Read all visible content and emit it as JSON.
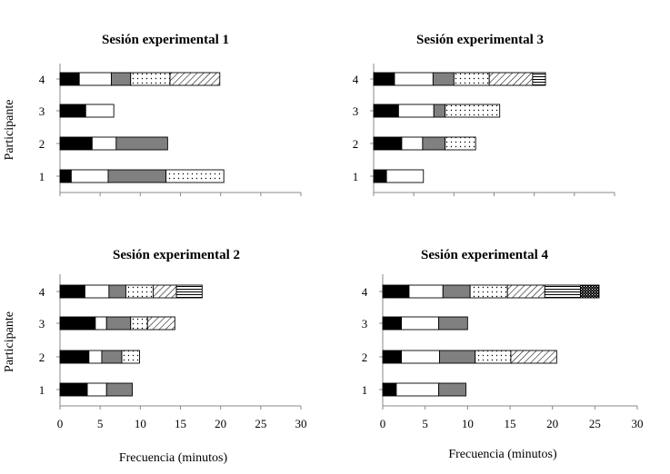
{
  "chart_data": {
    "type": "bar",
    "stacked": true,
    "orientation": "horizontal",
    "xlim": [
      0,
      30
    ],
    "xticks": [
      0,
      5,
      10,
      15,
      20,
      25,
      30
    ],
    "categories": [
      "1",
      "2",
      "3",
      "4"
    ],
    "ylabel": "Participante",
    "xlabel": "Frecuencia (minutos)",
    "grid": false,
    "legend": "none",
    "segment_fills": [
      "black",
      "white",
      "gray",
      "dots",
      "diagonal-hatch",
      "horizontal-lines",
      "checker"
    ],
    "panels": [
      {
        "title": "Sesión experimental 1",
        "bars": {
          "1": [
            1.4,
            4.6,
            7.2,
            7.2
          ],
          "2": [
            4.0,
            3.0,
            6.4
          ],
          "3": [
            3.2,
            3.5
          ],
          "4": [
            2.4,
            4.0,
            2.4,
            4.9,
            6.2
          ]
        }
      },
      {
        "title": "Sesión experimental 3",
        "bars": {
          "1": [
            1.6,
            4.6
          ],
          "2": [
            3.5,
            2.6,
            2.8,
            3.8
          ],
          "3": [
            3.1,
            4.4,
            1.4,
            6.8
          ],
          "4": [
            2.6,
            4.8,
            2.6,
            4.4,
            5.4,
            1.6
          ]
        }
      },
      {
        "title": "Sesión experimental 2",
        "bars": {
          "1": [
            3.4,
            2.4,
            3.2
          ],
          "2": [
            3.6,
            1.6,
            2.5,
            2.2
          ],
          "3": [
            4.4,
            1.4,
            3.0,
            2.1,
            3.4
          ],
          "4": [
            3.1,
            3.0,
            2.1,
            3.4,
            2.9,
            3.2
          ]
        }
      },
      {
        "title": "Sesión experimental 4",
        "bars": {
          "1": [
            1.6,
            5.0,
            3.2
          ],
          "2": [
            2.2,
            4.5,
            4.2,
            4.2,
            5.4
          ],
          "3": [
            2.2,
            4.4,
            3.4
          ],
          "4": [
            3.1,
            4.0,
            3.2,
            4.4,
            4.4,
            4.2,
            2.2
          ]
        }
      }
    ]
  }
}
